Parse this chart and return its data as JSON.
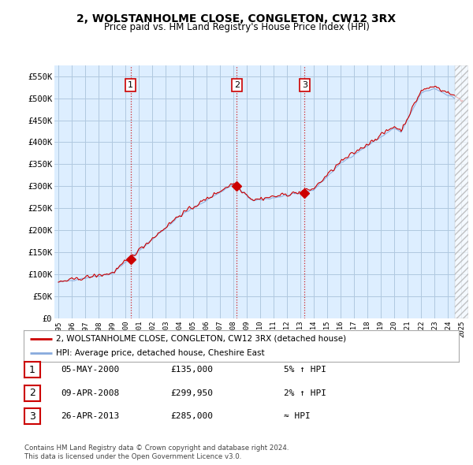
{
  "title": "2, WOLSTANHOLME CLOSE, CONGLETON, CW12 3RX",
  "subtitle": "Price paid vs. HM Land Registry's House Price Index (HPI)",
  "bg_color": "#ffffff",
  "chart_bg_color": "#ddeeff",
  "grid_color": "#b0c8e0",
  "legend_entry1": "2, WOLSTANHOLME CLOSE, CONGLETON, CW12 3RX (detached house)",
  "legend_entry2": "HPI: Average price, detached house, Cheshire East",
  "transactions": [
    {
      "num": 1,
      "date": "05-MAY-2000",
      "price": "£135,000",
      "hpi": "5% ↑ HPI"
    },
    {
      "num": 2,
      "date": "09-APR-2008",
      "price": "£299,950",
      "hpi": "2% ↑ HPI"
    },
    {
      "num": 3,
      "date": "26-APR-2013",
      "price": "£285,000",
      "hpi": "≈ HPI"
    }
  ],
  "footnote1": "Contains HM Land Registry data © Crown copyright and database right 2024.",
  "footnote2": "This data is licensed under the Open Government Licence v3.0.",
  "sale_years": [
    2000.37,
    2008.27,
    2013.32
  ],
  "sale_prices": [
    135000,
    299950,
    285000
  ],
  "sale_color": "#cc0000",
  "hpi_line_color": "#88aadd",
  "property_line_color": "#cc0000",
  "vline_color": "#cc0000",
  "ylim": [
    0,
    575000
  ],
  "yticks": [
    0,
    50000,
    100000,
    150000,
    200000,
    250000,
    300000,
    350000,
    400000,
    450000,
    500000,
    550000
  ],
  "ytick_labels": [
    "£0",
    "£50K",
    "£100K",
    "£150K",
    "£200K",
    "£250K",
    "£300K",
    "£350K",
    "£400K",
    "£450K",
    "£500K",
    "£550K"
  ],
  "xlim": [
    1994.7,
    2025.5
  ],
  "xtick_years": [
    1995,
    1996,
    1997,
    1998,
    1999,
    2000,
    2001,
    2002,
    2003,
    2004,
    2005,
    2006,
    2007,
    2008,
    2009,
    2010,
    2011,
    2012,
    2013,
    2014,
    2015,
    2016,
    2017,
    2018,
    2019,
    2020,
    2021,
    2022,
    2023,
    2024,
    2025
  ]
}
